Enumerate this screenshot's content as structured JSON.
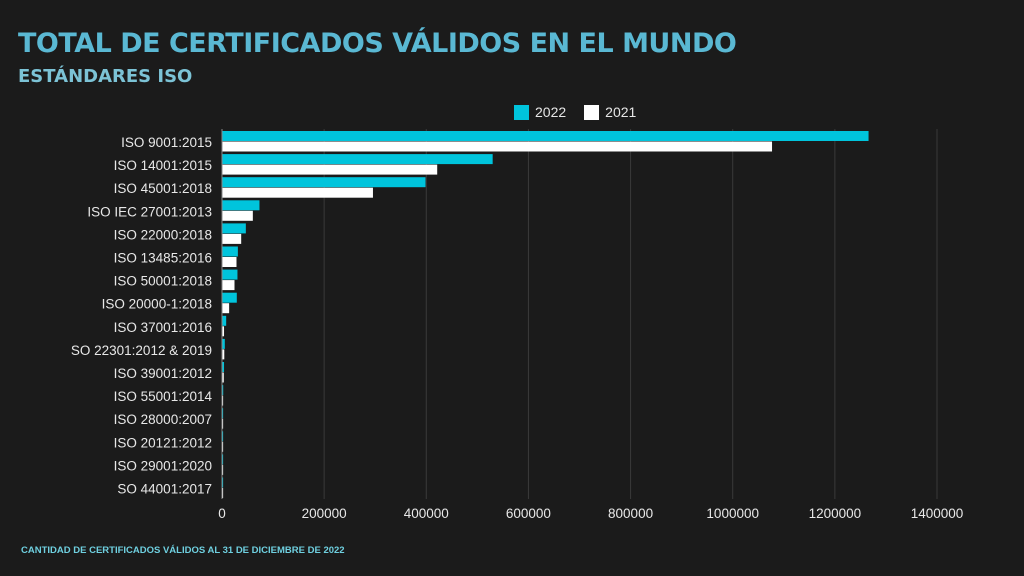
{
  "header": {
    "title": "TOTAL DE CERTIFICADOS VÁLIDOS EN EL MUNDO",
    "subtitle": "ESTÁNDARES ISO"
  },
  "footer": {
    "note": "CANTIDAD DE CERTIFICADOS VÁLIDOS AL 31 DE DICIEMBRE DE 2022"
  },
  "colors": {
    "series_2022": "#00c4dc",
    "series_2021": "#ffffff",
    "grid": "#3a3a3a",
    "title": "#5ab8d3"
  },
  "chart_data": {
    "type": "bar",
    "orientation": "horizontal",
    "title": "TOTAL DE CERTIFICADOS VÁLIDOS EN EL MUNDO",
    "subtitle": "ESTÁNDARES ISO",
    "xlabel": "",
    "ylabel": "",
    "xlim": [
      0,
      1400000
    ],
    "xticks": [
      "0",
      "200000",
      "400000",
      "600000",
      "800000",
      "1000000",
      "1200000",
      "1400000"
    ],
    "grid": true,
    "legend_position": "top",
    "categories": [
      "ISO 9001:2015",
      "ISO 14001:2015",
      "ISO 45001:2018",
      "ISO IEC 27001:2013",
      "ISO 22000:2018",
      "ISO 13485:2016",
      "ISO 50001:2018",
      "ISO 20000-1:2018",
      "ISO 37001:2016",
      "SO 22301:2012 & 2019",
      "ISO 39001:2012",
      "ISO 55001:2014",
      "ISO 28000:2007",
      "ISO 20121:2012",
      "ISO 29001:2020",
      "SO 44001:2017"
    ],
    "series": [
      {
        "name": "2022",
        "values": [
          1265000,
          529000,
          397500,
          72400,
          45700,
          30100,
          29300,
          28000,
          7200,
          4500,
          3000,
          1400,
          1000,
          700,
          500,
          300
        ]
      },
      {
        "name": "2021",
        "values": [
          1076000,
          420400,
          294600,
          59400,
          36600,
          27400,
          23500,
          13000,
          3000,
          3500,
          2500,
          1000,
          800,
          500,
          300,
          200
        ]
      }
    ]
  }
}
